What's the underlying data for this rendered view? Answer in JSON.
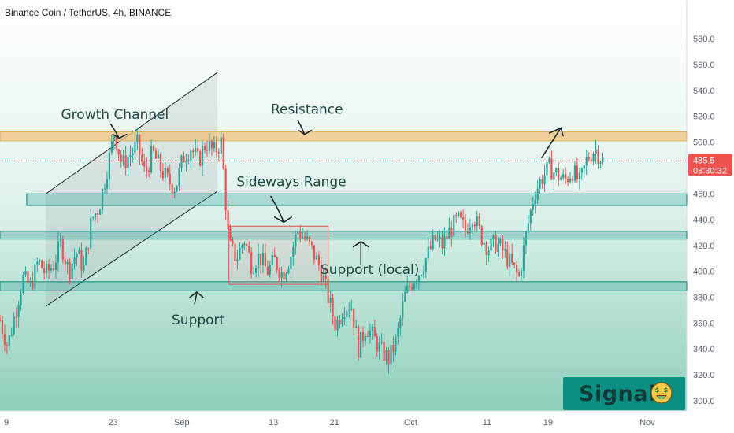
{
  "header": {
    "title": "Binance Coin / TetherUS, 4h, BINANCE"
  },
  "badge": {
    "text": "Signal",
    "icon": "money-face-icon"
  },
  "colors": {
    "up": "#26a69a",
    "down": "#ef5350",
    "band_fill": "#1b9c8e",
    "resistance_fill": "#f1c27d",
    "box_stroke": "#d85a5a",
    "label_text": "#1f4a43",
    "axis_text": "#555d6b"
  },
  "chart_data": {
    "type": "candlestick",
    "title": "Binance Coin / TetherUS, 4h, BINANCE",
    "xlabel": "",
    "ylabel": "",
    "ylim": [
      292,
      610
    ],
    "y_ticks": [
      "300.0",
      "320.0",
      "340.0",
      "360.0",
      "380.0",
      "400.0",
      "420.0",
      "440.0",
      "460.0",
      "480.0",
      "500.0",
      "520.0",
      "540.0",
      "560.0",
      "580.0"
    ],
    "x_ticks": [
      {
        "label": "9",
        "x": 0
      },
      {
        "label": "23",
        "x": 14
      },
      {
        "label": "Sep",
        "x": 23
      },
      {
        "label": "13",
        "x": 35
      },
      {
        "label": "21",
        "x": 43
      },
      {
        "label": "Oct",
        "x": 53
      },
      {
        "label": "11",
        "x": 63
      },
      {
        "label": "19",
        "x": 71
      },
      {
        "label": "Nov",
        "x": 84
      }
    ],
    "last_price": {
      "value": "485.5",
      "countdown": "03:30:32",
      "level": 485.5
    },
    "price_path": [
      [
        0,
        362
      ],
      [
        1,
        342
      ],
      [
        2,
        368
      ],
      [
        3,
        395
      ],
      [
        4,
        388
      ],
      [
        5,
        408
      ],
      [
        6,
        398
      ],
      [
        7,
        405
      ],
      [
        8,
        422
      ],
      [
        9,
        400
      ],
      [
        10,
        415
      ],
      [
        11,
        402
      ],
      [
        12,
        440
      ],
      [
        13,
        450
      ],
      [
        14,
        478
      ],
      [
        15,
        508
      ],
      [
        16,
        482
      ],
      [
        17,
        490
      ],
      [
        18,
        498
      ],
      [
        19,
        475
      ],
      [
        20,
        492
      ],
      [
        21,
        480
      ],
      [
        22,
        470
      ],
      [
        23,
        465
      ],
      [
        24,
        488
      ],
      [
        25,
        496
      ],
      [
        26,
        485
      ],
      [
        27,
        500
      ],
      [
        28,
        492
      ],
      [
        29,
        500
      ],
      [
        30,
        420
      ],
      [
        31,
        410
      ],
      [
        32,
        425
      ],
      [
        33,
        405
      ],
      [
        34,
        412
      ],
      [
        35,
        400
      ],
      [
        36,
        408
      ],
      [
        37,
        398
      ],
      [
        38,
        410
      ],
      [
        39,
        432
      ],
      [
        40,
        425
      ],
      [
        41,
        415
      ],
      [
        42,
        402
      ],
      [
        43,
        380
      ],
      [
        44,
        358
      ],
      [
        45,
        372
      ],
      [
        46,
        375
      ],
      [
        47,
        340
      ],
      [
        48,
        358
      ],
      [
        49,
        348
      ],
      [
        50,
        338
      ],
      [
        51,
        332
      ],
      [
        52,
        348
      ],
      [
        53,
        380
      ],
      [
        54,
        392
      ],
      [
        55,
        400
      ],
      [
        56,
        412
      ],
      [
        57,
        425
      ],
      [
        58,
        420
      ],
      [
        59,
        432
      ],
      [
        60,
        440
      ],
      [
        61,
        432
      ],
      [
        62,
        445
      ],
      [
        63,
        428
      ],
      [
        64,
        418
      ],
      [
        65,
        422
      ],
      [
        66,
        415
      ],
      [
        67,
        405
      ],
      [
        68,
        395
      ],
      [
        69,
        430
      ],
      [
        70,
        460
      ],
      [
        71,
        472
      ],
      [
        72,
        480
      ],
      [
        73,
        475
      ],
      [
        74,
        470
      ],
      [
        75,
        478
      ],
      [
        76,
        468
      ],
      [
        77,
        488
      ],
      [
        78,
        495
      ],
      [
        79,
        485.5
      ]
    ],
    "bands": [
      {
        "name": "resistance",
        "low": 501,
        "high": 508,
        "x_from": 0,
        "x_to": 90
      },
      {
        "name": "sideways-top",
        "low": 451,
        "high": 460,
        "x_from": 3.5,
        "x_to": 90
      },
      {
        "name": "range-mid",
        "low": 425,
        "high": 431,
        "x_from": 0,
        "x_to": 90
      },
      {
        "name": "range-low",
        "low": 385,
        "high": 392,
        "x_from": 0,
        "x_to": 90
      }
    ],
    "channel": {
      "upper": [
        [
          6,
          460
        ],
        [
          28.5,
          554
        ]
      ],
      "lower": [
        [
          6,
          373
        ],
        [
          28.5,
          462
        ]
      ]
    },
    "range_box": {
      "x_from": 30,
      "x_to": 43,
      "low": 390,
      "high": 435
    },
    "annotations": [
      {
        "text": "Growth Channel",
        "x": 8,
        "y": 518
      },
      {
        "text": "Resistance",
        "x": 35.5,
        "y": 522
      },
      {
        "text": "Sideways Range",
        "x": 31,
        "y": 466
      },
      {
        "text": "Support (local)",
        "x": 42,
        "y": 398
      },
      {
        "text": "Support",
        "x": 22.5,
        "y": 359
      }
    ]
  }
}
